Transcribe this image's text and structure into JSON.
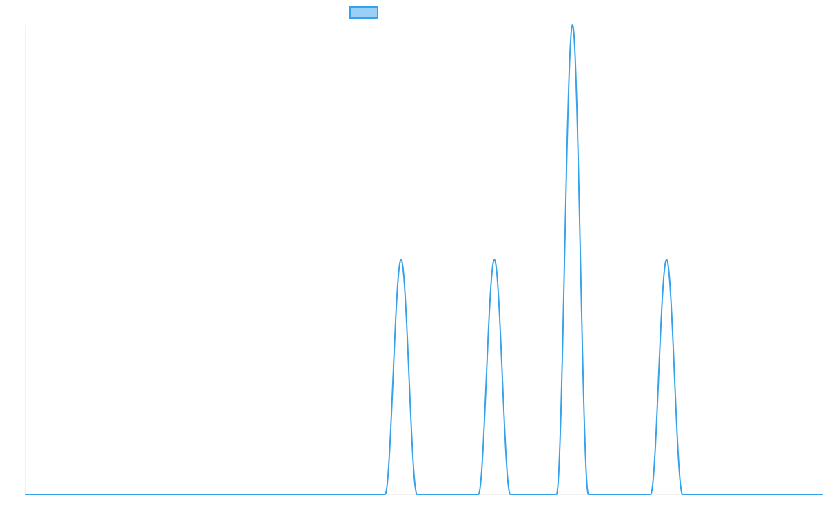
{
  "chart_data": {
    "type": "line",
    "title": "",
    "xlabel": "",
    "ylabel": "",
    "x_range": [
      0,
      100
    ],
    "ylim": [
      0,
      2
    ],
    "grid": false,
    "legend": {
      "position": "top-center",
      "entries": [
        {
          "name": "",
          "color": "#36a2eb",
          "fill": "#9ad0f5"
        }
      ]
    },
    "series": [
      {
        "color": "#36a2eb",
        "baseline": 0,
        "peaks": [
          {
            "x": 47.1,
            "y": 1.0,
            "half_width": 2.0
          },
          {
            "x": 58.8,
            "y": 1.0,
            "half_width": 2.0
          },
          {
            "x": 68.6,
            "y": 2.0,
            "half_width": 2.0
          },
          {
            "x": 80.4,
            "y": 1.0,
            "half_width": 2.0
          }
        ]
      }
    ]
  }
}
